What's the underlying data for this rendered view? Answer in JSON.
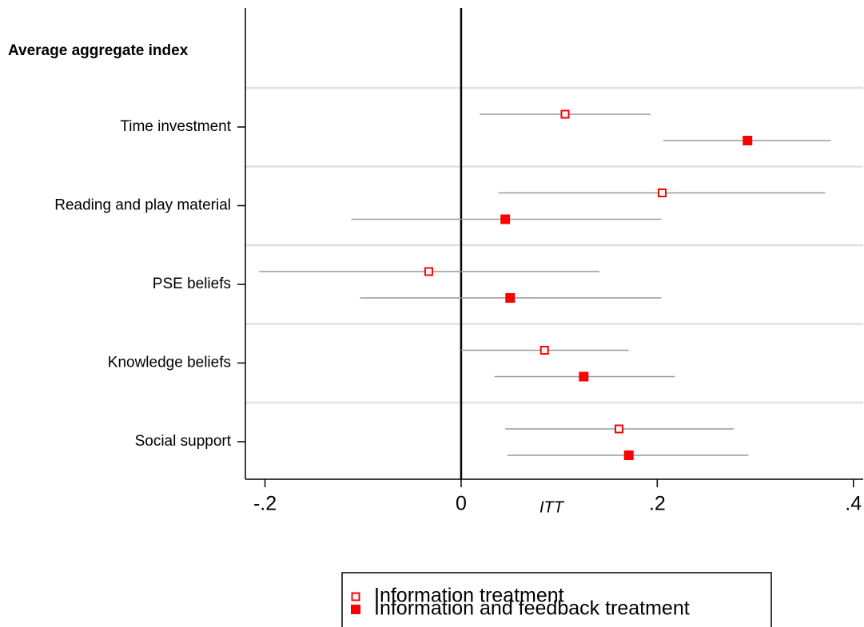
{
  "chart_data": {
    "type": "coefplot",
    "header_label": "Average aggregate index",
    "categories": [
      "Time investment",
      "Reading and play material",
      "PSE beliefs",
      "Knowledge beliefs",
      "Social support"
    ],
    "x_label": "ITT",
    "xlim": [
      -0.22,
      0.41
    ],
    "xticks": [
      {
        "value": -0.2,
        "label": "-.2"
      },
      0,
      {
        "value": 0.2,
        "label": ".2"
      },
      {
        "value": 0.4,
        "label": ".4"
      }
    ],
    "series": [
      {
        "name": "Information treatment",
        "color": "#ff0000",
        "marker": "hollow-square",
        "values": [
          0.106,
          0.205,
          -0.033,
          0.085,
          0.161
        ],
        "lower": [
          0.019,
          0.038,
          -0.206,
          0.0,
          0.045
        ],
        "upper": [
          0.193,
          0.371,
          0.141,
          0.171,
          0.278
        ]
      },
      {
        "name": "Information and feedback treatment",
        "color": "#ff0000",
        "marker": "filled-square",
        "values": [
          0.292,
          0.045,
          0.05,
          0.125,
          0.171
        ],
        "lower": [
          0.206,
          -0.112,
          -0.103,
          0.034,
          0.047
        ],
        "upper": [
          0.377,
          0.204,
          0.204,
          0.218,
          0.293
        ]
      }
    ]
  }
}
